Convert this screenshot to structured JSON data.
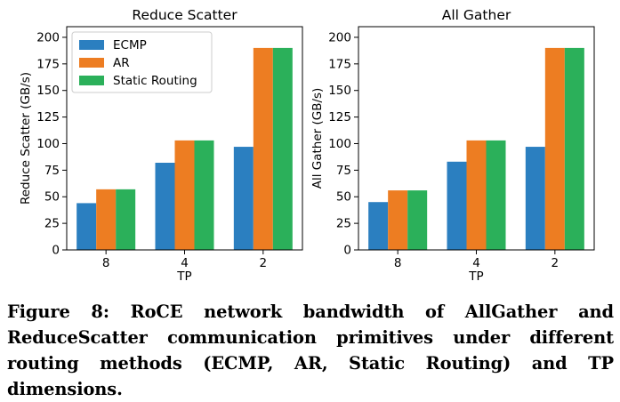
{
  "caption": {
    "label": "Figure 8:",
    "text": "RoCE network bandwidth of AllGather and ReduceScatter communication primitives under different routing methods (ECMP, AR, Static Routing) and TP dimensions."
  },
  "colors": {
    "ECMP": "#2b7fc0",
    "AR": "#ed7d22",
    "Static Routing": "#2bb05a"
  },
  "chart_data": [
    {
      "type": "bar",
      "title": "Reduce Scatter",
      "xlabel": "TP",
      "ylabel": "Reduce Scatter (GB/s)",
      "categories": [
        "8",
        "4",
        "2"
      ],
      "ylim": [
        0,
        210
      ],
      "yticks": [
        0,
        25,
        50,
        75,
        100,
        125,
        150,
        175,
        200
      ],
      "legend": "top-left",
      "grid": false,
      "series": [
        {
          "name": "ECMP",
          "values": [
            44,
            82,
            97
          ]
        },
        {
          "name": "AR",
          "values": [
            57,
            103,
            190
          ]
        },
        {
          "name": "Static Routing",
          "values": [
            57,
            103,
            190
          ]
        }
      ]
    },
    {
      "type": "bar",
      "title": "All Gather",
      "xlabel": "TP",
      "ylabel": "All Gather (GB/s)",
      "categories": [
        "8",
        "4",
        "2"
      ],
      "ylim": [
        0,
        210
      ],
      "yticks": [
        0,
        25,
        50,
        75,
        100,
        125,
        150,
        175,
        200
      ],
      "legend": "none",
      "grid": false,
      "series": [
        {
          "name": "ECMP",
          "values": [
            45,
            83,
            97
          ]
        },
        {
          "name": "AR",
          "values": [
            56,
            103,
            190
          ]
        },
        {
          "name": "Static Routing",
          "values": [
            56,
            103,
            190
          ]
        }
      ]
    }
  ]
}
